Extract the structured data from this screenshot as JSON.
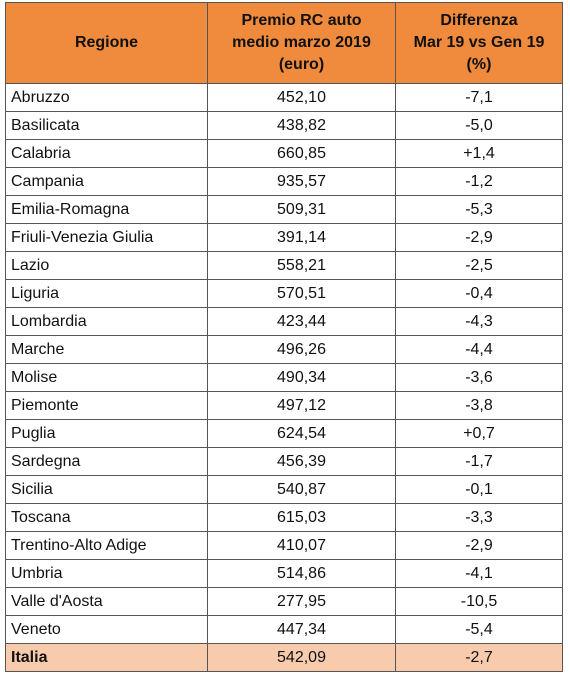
{
  "table": {
    "headers": {
      "region": "Regione",
      "premium": [
        "Premio RC auto",
        "medio marzo 2019",
        "(euro)"
      ],
      "diff": [
        "Differenza",
        "Mar 19 vs Gen 19",
        "(%)"
      ]
    },
    "rows": [
      {
        "region": "Abruzzo",
        "premium": "452,10",
        "diff": "-7,1"
      },
      {
        "region": "Basilicata",
        "premium": "438,82",
        "diff": "-5,0"
      },
      {
        "region": "Calabria",
        "premium": "660,85",
        "diff": "+1,4"
      },
      {
        "region": "Campania",
        "premium": "935,57",
        "diff": "-1,2"
      },
      {
        "region": "Emilia-Romagna",
        "premium": "509,31",
        "diff": "-5,3"
      },
      {
        "region": "Friuli-Venezia Giulia",
        "premium": "391,14",
        "diff": "-2,9"
      },
      {
        "region": "Lazio",
        "premium": "558,21",
        "diff": "-2,5"
      },
      {
        "region": "Liguria",
        "premium": "570,51",
        "diff": "-0,4"
      },
      {
        "region": "Lombardia",
        "premium": "423,44",
        "diff": "-4,3"
      },
      {
        "region": "Marche",
        "premium": "496,26",
        "diff": "-4,4"
      },
      {
        "region": "Molise",
        "premium": "490,34",
        "diff": "-3,6"
      },
      {
        "region": "Piemonte",
        "premium": "497,12",
        "diff": "-3,8"
      },
      {
        "region": "Puglia",
        "premium": "624,54",
        "diff": "+0,7"
      },
      {
        "region": "Sardegna",
        "premium": "456,39",
        "diff": "-1,7"
      },
      {
        "region": "Sicilia",
        "premium": "540,87",
        "diff": "-0,1"
      },
      {
        "region": "Toscana",
        "premium": "615,03",
        "diff": "-3,3"
      },
      {
        "region": "Trentino-Alto Adige",
        "premium": "410,07",
        "diff": "-2,9"
      },
      {
        "region": "Umbria",
        "premium": "514,86",
        "diff": "-4,1"
      },
      {
        "region": "Valle d'Aosta",
        "premium": "277,95",
        "diff": "-10,5"
      },
      {
        "region": "Veneto",
        "premium": "447,34",
        "diff": "-5,4"
      }
    ],
    "total": {
      "region": "Italia",
      "premium": "542,09",
      "diff": "-2,7"
    },
    "colors": {
      "header_bg": "#f08a3c",
      "total_bg": "#f8cbad",
      "border": "#555555"
    }
  }
}
